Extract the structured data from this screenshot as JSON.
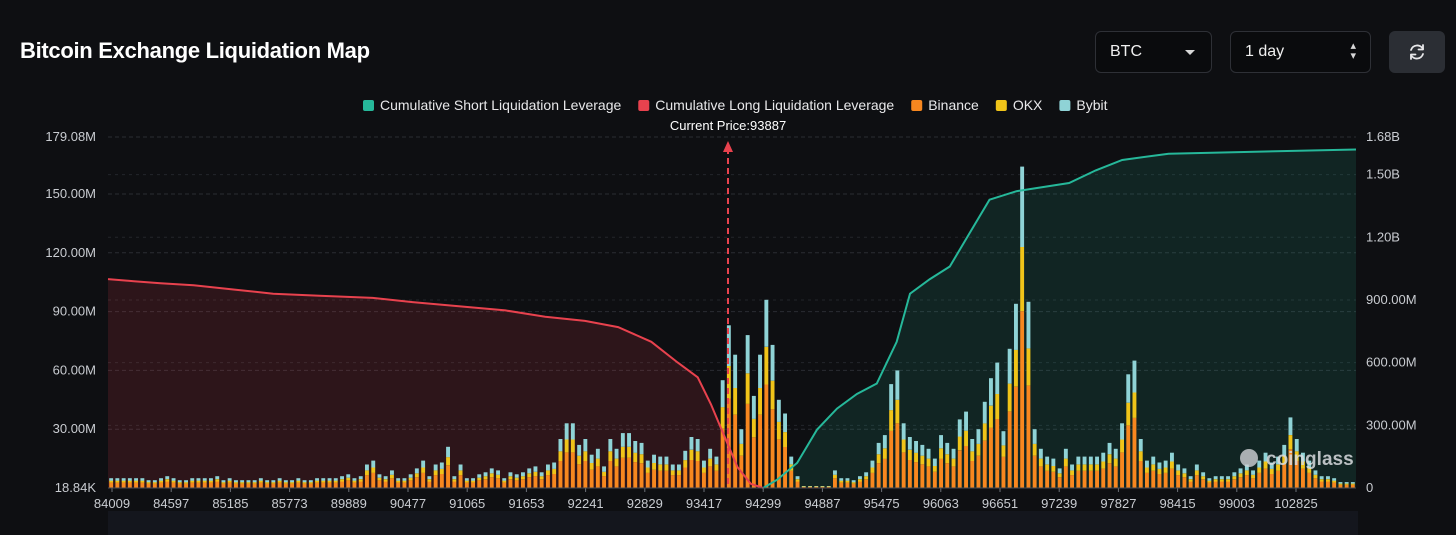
{
  "header": {
    "title": "Bitcoin Exchange Liquidation Map",
    "coin_select": "BTC",
    "timeframe_select": "1 day",
    "refresh_icon": "refresh-icon"
  },
  "colors": {
    "short_cum": "#26b89a",
    "long_cum": "#e8424e",
    "binance": "#f7871f",
    "okx": "#f0c419",
    "bybit": "#8fd3d6"
  },
  "chart_data": {
    "type": "bar",
    "current_price_label": "Current Price:93887",
    "current_price": 93887,
    "watermark": "coinglass",
    "legend": [
      {
        "label": "Cumulative Short Liquidation Leverage",
        "color": "#26b89a"
      },
      {
        "label": "Cumulative Long Liquidation Leverage",
        "color": "#e8424e"
      },
      {
        "label": "Binance",
        "color": "#f7871f"
      },
      {
        "label": "OKX",
        "color": "#f0c419"
      },
      {
        "label": "Bybit",
        "color": "#8fd3d6"
      }
    ],
    "x_tick_labels": [
      "84009",
      "84597",
      "85185",
      "85773",
      "89889",
      "90477",
      "91065",
      "91653",
      "92241",
      "92829",
      "93417",
      "94299",
      "94887",
      "95475",
      "96063",
      "96651",
      "97239",
      "97827",
      "98415",
      "99003",
      "102825"
    ],
    "left_axis": {
      "ticks": [
        "18.84K",
        "30.00M",
        "60.00M",
        "90.00M",
        "120.00M",
        "150.00M",
        "179.08M"
      ],
      "range": [
        0,
        179.08
      ]
    },
    "right_axis": {
      "ticks": [
        "0",
        "300.00M",
        "600.00M",
        "900.00M",
        "1.20B",
        "1.50B",
        "1.68B"
      ],
      "range": [
        0,
        1.68
      ]
    },
    "bar_totals": [
      5,
      5,
      5,
      5,
      5,
      5,
      4,
      4,
      5,
      6,
      5,
      4,
      4,
      5,
      5,
      5,
      5,
      6,
      4,
      5,
      4,
      4,
      4,
      4,
      5,
      4,
      4,
      5,
      4,
      4,
      5,
      4,
      4,
      5,
      5,
      5,
      5,
      6,
      7,
      5,
      6,
      12,
      14,
      7,
      6,
      9,
      5,
      5,
      7,
      10,
      14,
      6,
      12,
      13,
      21,
      6,
      12,
      5,
      5,
      7,
      8,
      10,
      9,
      5,
      8,
      7,
      8,
      10,
      11,
      8,
      12,
      13,
      25,
      33,
      33,
      22,
      25,
      17,
      20,
      11,
      25,
      20,
      28,
      28,
      24,
      23,
      14,
      17,
      16,
      16,
      12,
      12,
      19,
      26,
      25,
      14,
      20,
      16,
      55,
      83,
      68,
      30,
      78,
      47,
      68,
      96,
      73,
      45,
      38,
      16,
      6,
      1,
      1,
      1,
      1,
      1,
      9,
      5,
      5,
      4,
      6,
      8,
      14,
      23,
      27,
      53,
      60,
      33,
      26,
      24,
      22,
      20,
      15,
      27,
      23,
      20,
      35,
      39,
      25,
      30,
      44,
      56,
      64,
      29,
      71,
      94,
      164,
      95,
      30,
      20,
      16,
      15,
      10,
      20,
      12,
      16,
      16,
      16,
      16,
      18,
      23,
      20,
      33,
      58,
      65,
      25,
      14,
      16,
      13,
      14,
      18,
      12,
      10,
      6,
      12,
      8,
      5,
      6,
      6,
      6,
      8,
      10,
      12,
      9,
      14,
      18,
      13,
      16,
      22,
      36,
      25,
      18,
      14,
      9,
      6,
      6,
      5,
      3,
      3,
      3
    ],
    "long_cumulative_B": [
      [
        84009,
        1.0
      ],
      [
        84400,
        0.99
      ],
      [
        84800,
        0.98
      ],
      [
        85300,
        0.97
      ],
      [
        85900,
        0.95
      ],
      [
        86500,
        0.93
      ],
      [
        87200,
        0.92
      ],
      [
        88000,
        0.91
      ],
      [
        88600,
        0.89
      ],
      [
        89300,
        0.87
      ],
      [
        90000,
        0.85
      ],
      [
        90600,
        0.82
      ],
      [
        91200,
        0.8
      ],
      [
        91700,
        0.77
      ],
      [
        92200,
        0.7
      ],
      [
        92600,
        0.6
      ],
      [
        92900,
        0.53
      ],
      [
        93100,
        0.4
      ],
      [
        93300,
        0.25
      ],
      [
        93500,
        0.1
      ],
      [
        93700,
        0.02
      ],
      [
        93887,
        0
      ]
    ],
    "short_cumulative_B": [
      [
        93887,
        0
      ],
      [
        94100,
        0.04
      ],
      [
        94400,
        0.12
      ],
      [
        94700,
        0.28
      ],
      [
        95000,
        0.38
      ],
      [
        95300,
        0.45
      ],
      [
        95600,
        0.5
      ],
      [
        95900,
        0.7
      ],
      [
        96100,
        0.93
      ],
      [
        96400,
        1.0
      ],
      [
        96700,
        1.06
      ],
      [
        97000,
        1.22
      ],
      [
        97300,
        1.38
      ],
      [
        97700,
        1.42
      ],
      [
        98100,
        1.44
      ],
      [
        98500,
        1.46
      ],
      [
        98900,
        1.52
      ],
      [
        99300,
        1.57
      ],
      [
        100000,
        1.6
      ],
      [
        102825,
        1.62
      ]
    ]
  }
}
